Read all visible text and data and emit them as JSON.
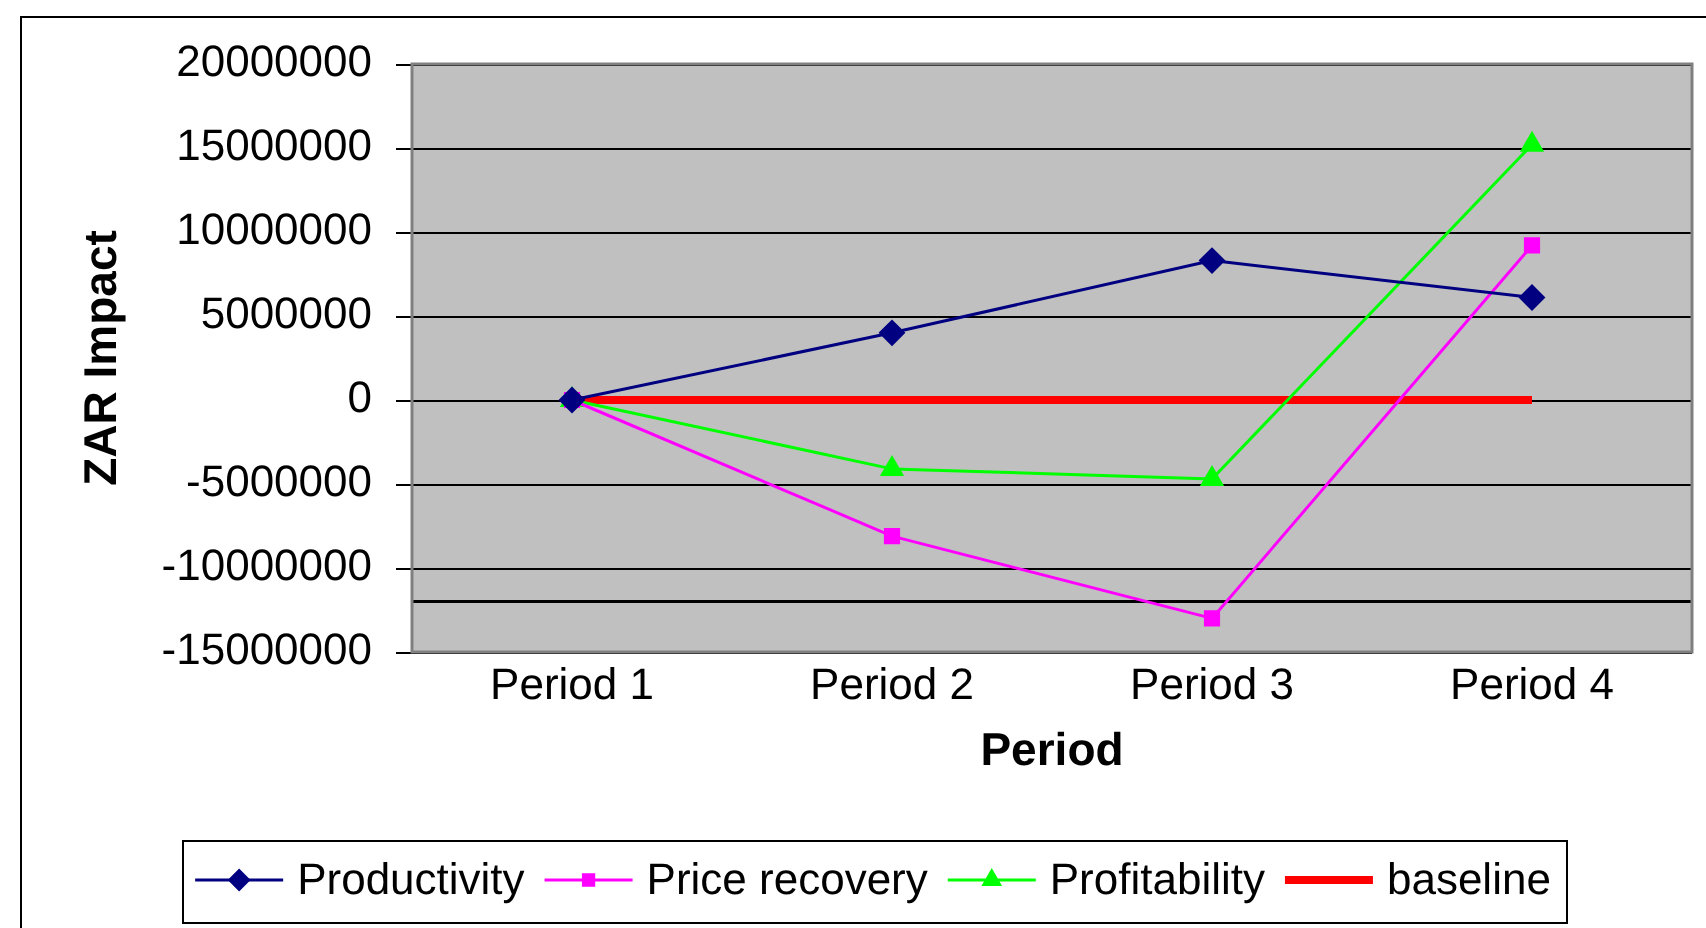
{
  "chart_data": {
    "type": "line",
    "xlabel": "Period",
    "ylabel": "ZAR Impact",
    "categories": [
      "Period 1",
      "Period 2",
      "Period 3",
      "Period 4"
    ],
    "series": [
      {
        "name": "Productivity",
        "color": "#000080",
        "marker": "diamond",
        "values": [
          0,
          4000000,
          8300000,
          6100000
        ]
      },
      {
        "name": "Price recovery",
        "color": "#ff00ff",
        "marker": "square",
        "values": [
          0,
          -8100000,
          -13000000,
          9200000
        ]
      },
      {
        "name": "Profitability",
        "color": "#00ff00",
        "marker": "triangle",
        "values": [
          0,
          -4100000,
          -4700000,
          15200000
        ]
      },
      {
        "name": "baseline",
        "color": "#ff0000",
        "marker": "none",
        "values": [
          0,
          0,
          0,
          0
        ]
      }
    ],
    "ylim": [
      -15000000,
      20000000
    ],
    "yticks": [
      -15000000,
      -10000000,
      -5000000,
      0,
      5000000,
      10000000,
      15000000,
      20000000
    ],
    "grid": "y",
    "legend": "bottom",
    "ref_lines": [
      {
        "axis": "y",
        "value": -12000000,
        "color": "#000000"
      }
    ]
  }
}
